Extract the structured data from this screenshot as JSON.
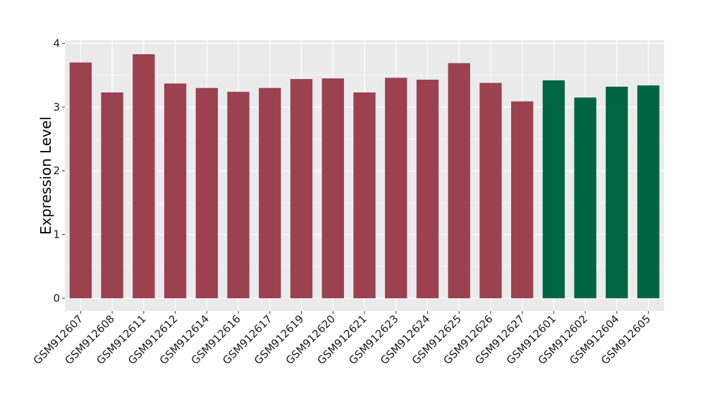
{
  "chart_data": {
    "type": "bar",
    "title": "",
    "xlabel": "",
    "ylabel": "Expression Level",
    "ylim": [
      -0.2,
      4.05
    ],
    "yticks": [
      0,
      1,
      2,
      3,
      4
    ],
    "grid": true,
    "colors": {
      "group_a": "#9b4150",
      "group_b": "#006543",
      "panel_bg": "#ebebeb",
      "grid": "#ffffff"
    },
    "categories": [
      "GSM912607",
      "GSM912608",
      "GSM912611",
      "GSM912612",
      "GSM912614",
      "GSM912616",
      "GSM912617",
      "GSM912619",
      "GSM912620",
      "GSM912621",
      "GSM912623",
      "GSM912624",
      "GSM912625",
      "GSM912626",
      "GSM912627",
      "GSM912601",
      "GSM912602",
      "GSM912604",
      "GSM912605"
    ],
    "values": [
      3.7,
      3.23,
      3.83,
      3.37,
      3.3,
      3.24,
      3.3,
      3.44,
      3.45,
      3.23,
      3.46,
      3.43,
      3.69,
      3.38,
      3.09,
      3.42,
      3.15,
      3.32,
      3.34
    ],
    "groups": [
      "a",
      "a",
      "a",
      "a",
      "a",
      "a",
      "a",
      "a",
      "a",
      "a",
      "a",
      "a",
      "a",
      "a",
      "a",
      "b",
      "b",
      "b",
      "b"
    ]
  }
}
